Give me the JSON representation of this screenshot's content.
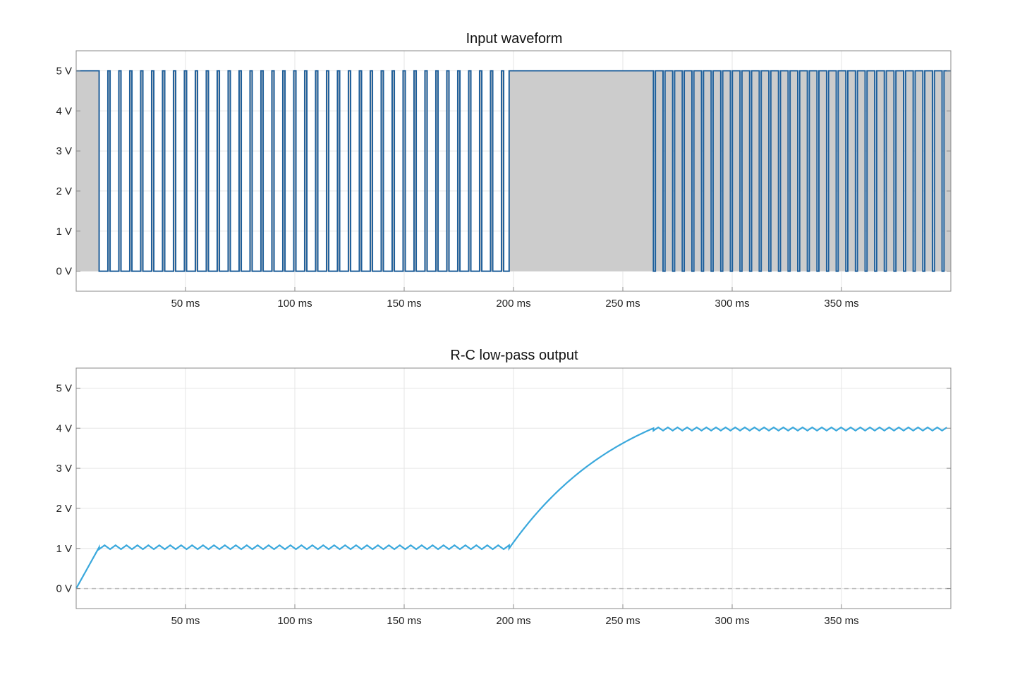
{
  "chart_data": [
    {
      "type": "line",
      "title": "Input waveform",
      "xlabel": "",
      "ylabel": "",
      "xlim": [
        0,
        400
      ],
      "ylim": [
        -0.5,
        5.5
      ],
      "x_ticks": [
        50,
        100,
        150,
        200,
        250,
        300,
        350
      ],
      "x_tick_labels": [
        "50 ms",
        "100 ms",
        "150 ms",
        "200 ms",
        "250 ms",
        "300 ms",
        "350 ms"
      ],
      "y_ticks": [
        0,
        1,
        2,
        3,
        4,
        5
      ],
      "y_tick_labels": [
        "0 V",
        "1 V",
        "2 V",
        "3 V",
        "4 V",
        "5 V"
      ],
      "grid": true,
      "fill_under": true,
      "series": [
        {
          "color": "#1f5f9a",
          "fill": "#cccccc",
          "segments": [
            {
              "t_start": 0,
              "t_end": 10.5,
              "level": 5,
              "kind": "high"
            },
            {
              "t_start": 10.5,
              "t_end": 198,
              "kind": "pwm",
              "period": 5.0,
              "duty": 0.2,
              "high": 5,
              "low": 0
            },
            {
              "t_start": 198,
              "t_end": 264,
              "level": 5,
              "kind": "high"
            },
            {
              "t_start": 264,
              "t_end": 400,
              "kind": "pwm",
              "period": 4.4,
              "duty": 0.8,
              "high": 5,
              "low": 0
            }
          ]
        }
      ]
    },
    {
      "type": "line",
      "title": "R-C low-pass output",
      "xlabel": "",
      "ylabel": "",
      "xlim": [
        0,
        400
      ],
      "ylim": [
        -0.5,
        5.5
      ],
      "x_ticks": [
        50,
        100,
        150,
        200,
        250,
        300,
        350
      ],
      "x_tick_labels": [
        "50 ms",
        "100 ms",
        "150 ms",
        "200 ms",
        "250 ms",
        "300 ms",
        "350 ms"
      ],
      "y_ticks": [
        0,
        1,
        2,
        3,
        4,
        5
      ],
      "y_tick_labels": [
        "0 V",
        "1 V",
        "2 V",
        "3 V",
        "4 V",
        "5 V"
      ],
      "grid": true,
      "baseline": {
        "y": 0,
        "color": "#bbbbbb",
        "dashed": true
      },
      "series": [
        {
          "color": "#3aa8dc",
          "segments": [
            {
              "t_start": 0,
              "t_end": 10.5,
              "kind": "ramp",
              "from": 0,
              "to": 1.03
            },
            {
              "t_start": 10.5,
              "t_end": 198,
              "kind": "ripple",
              "mean": 1.03,
              "amplitude": 0.05,
              "period": 5.0
            },
            {
              "t_start": 198,
              "t_end": 264,
              "kind": "rc_rise",
              "from": 1.0,
              "to": 4.0,
              "target": 5.0,
              "tau_ms": 55
            },
            {
              "t_start": 264,
              "t_end": 400,
              "kind": "ripple",
              "mean": 3.98,
              "amplitude": 0.04,
              "period": 4.4
            }
          ]
        }
      ]
    }
  ]
}
